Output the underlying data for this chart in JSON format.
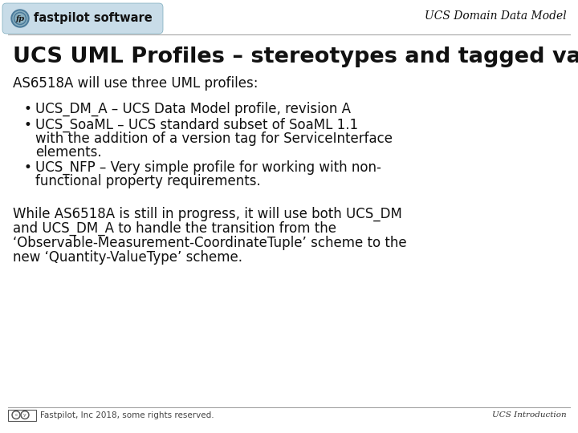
{
  "bg_color": "#ffffff",
  "header_italic_text": "UCS Domain Data Model",
  "logo_text": "fastpilot software",
  "logo_bg_color": "#c8dce8",
  "logo_border_color": "#7aaabb",
  "title": "UCS UML Profiles – stereotypes and tagged values.",
  "title_fontsize": 19.5,
  "subtitle": "AS6518A will use three UML profiles:",
  "subtitle_fontsize": 12,
  "bullet1": "UCS_DM_A – UCS Data Model profile, revision A",
  "bullet2_line1": "UCS_SoaML – UCS standard subset of SoaML 1.1",
  "bullet2_line2": "with the addition of a version tag for ServiceInterface",
  "bullet2_line3": "elements.",
  "bullet3_line1": "UCS_NFP – Very simple profile for working with non-",
  "bullet3_line2": "functional property requirements.",
  "bullet_fontsize": 12,
  "para_line1": "While AS6518A is still in progress, it will use both UCS_DM",
  "para_line2": "and UCS_DM_A to handle the transition from the",
  "para_line3": "‘Observable-Measurement-CoordinateTuple’ scheme to the",
  "para_line4": "new ‘Quantity-ValueType’ scheme.",
  "para_fontsize": 12,
  "footer_left": "Fastpilot, Inc 2018, some rights reserved.",
  "footer_right": "UCS Introduction",
  "footer_fontsize": 7.5,
  "footer_line_color": "#999999",
  "header_sep_color": "#999999"
}
